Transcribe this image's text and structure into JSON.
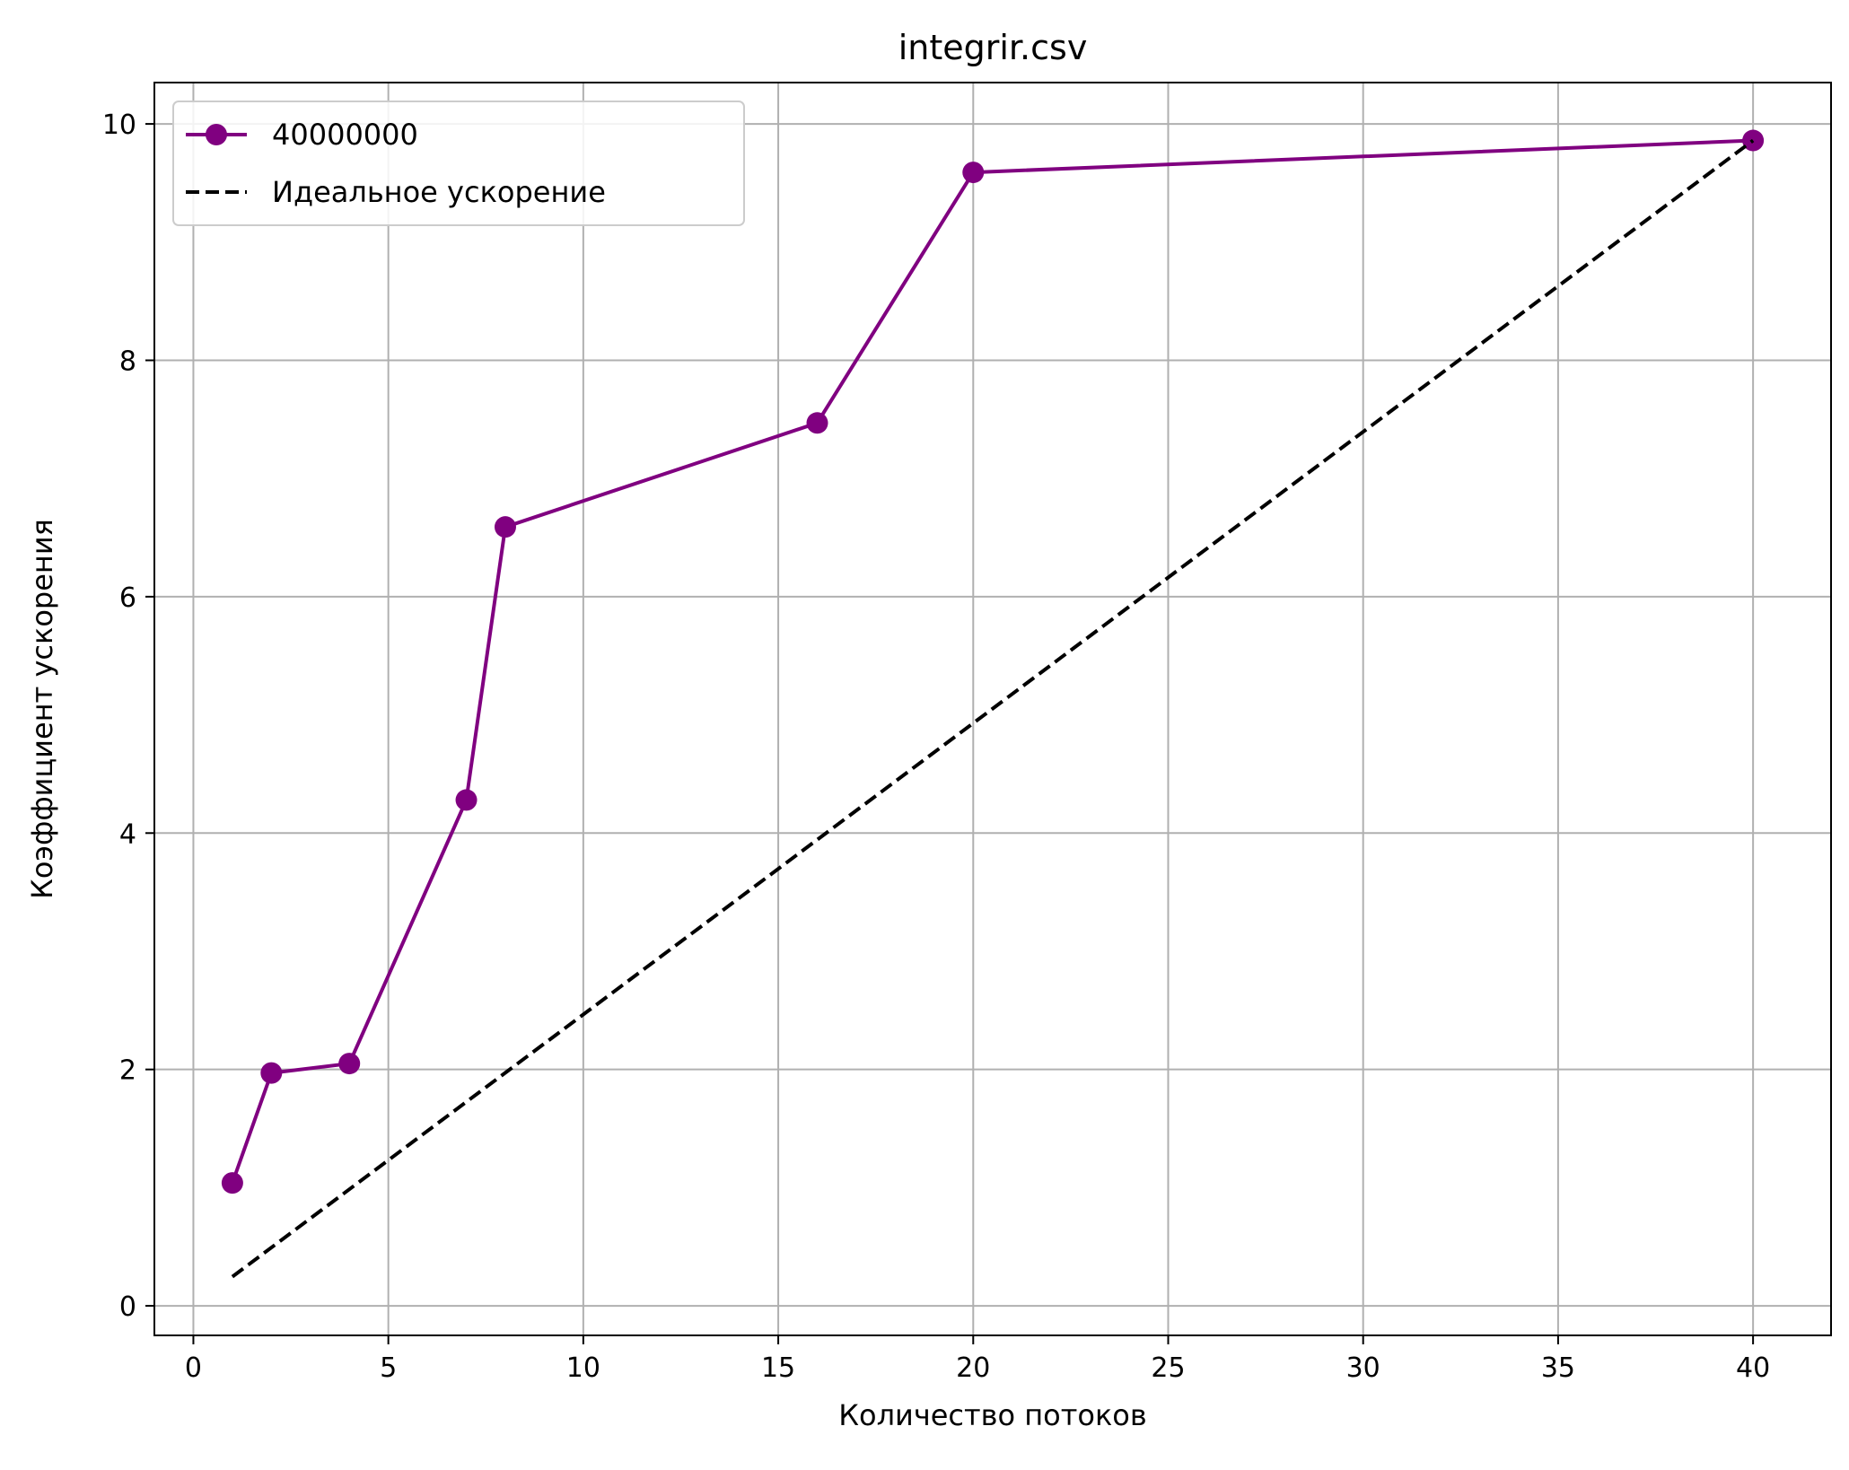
{
  "chart_data": {
    "type": "line",
    "title": "integrir.csv",
    "xlabel": "Количество потоков",
    "ylabel": "Коэффициент ускорения",
    "xlim": [
      -1,
      42
    ],
    "ylim": [
      -0.25,
      10.35
    ],
    "xticks": [
      0,
      5,
      10,
      15,
      20,
      25,
      30,
      35,
      40
    ],
    "yticks": [
      0,
      2,
      4,
      6,
      8,
      10
    ],
    "grid": true,
    "legend": "upper-left",
    "series": [
      {
        "name": "40000000",
        "style": "solid-with-markers",
        "color": "#800080",
        "x": [
          1,
          2,
          4,
          7,
          8,
          16,
          20,
          40
        ],
        "y": [
          1.04,
          1.97,
          2.05,
          4.28,
          6.59,
          7.47,
          9.59,
          9.86
        ]
      },
      {
        "name": "Идеальное ускорение",
        "style": "dashed",
        "color": "#000000",
        "x": [
          1,
          40
        ],
        "y": [
          0.2465,
          9.86
        ]
      }
    ]
  }
}
